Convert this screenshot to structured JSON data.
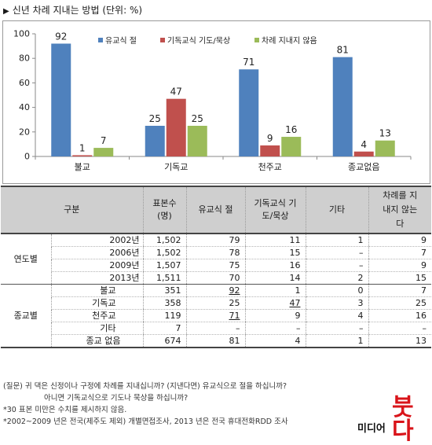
{
  "header": {
    "marker": "▶",
    "title": "신년 차례 지내는 방법 (단위: %)"
  },
  "chart_data": {
    "type": "bar",
    "title": "",
    "xlabel": "",
    "ylabel": "",
    "ylim": [
      0,
      100
    ],
    "yticks": [
      0,
      20,
      40,
      60,
      80,
      100
    ],
    "grid": false,
    "legend_position": "top-right",
    "categories": [
      "불교",
      "기독교",
      "천주교",
      "종교없음"
    ],
    "series": [
      {
        "name": "유교식 절",
        "color": "#4f81bd",
        "values": [
          92,
          25,
          71,
          81
        ]
      },
      {
        "name": "기독교식 기도/묵상",
        "color": "#c0504d",
        "values": [
          1,
          47,
          9,
          4
        ]
      },
      {
        "name": "차례 지내지 않음",
        "color": "#9bbb59",
        "values": [
          7,
          25,
          16,
          13
        ]
      }
    ]
  },
  "table": {
    "headers": [
      "구분",
      "표본수 (명)",
      "유교식 절",
      "기독교식 기도/묵상",
      "기타",
      "차례를 지내지 않는다"
    ],
    "groups": [
      {
        "label": "연도별",
        "rows": [
          {
            "label": "2002년",
            "n": "1,502",
            "confucian": "79",
            "christian": "11",
            "other": "1",
            "none": "9"
          },
          {
            "label": "2006년",
            "n": "1,502",
            "confucian": "78",
            "christian": "15",
            "other": "–",
            "none": "7"
          },
          {
            "label": "2009년",
            "n": "1,507",
            "confucian": "75",
            "christian": "16",
            "other": "–",
            "none": "9"
          },
          {
            "label": "2013년",
            "n": "1,511",
            "confucian": "70",
            "christian": "14",
            "other": "2",
            "none": "15"
          }
        ]
      },
      {
        "label": "종교별",
        "rows": [
          {
            "label": "불교",
            "n": "351",
            "confucian": "92",
            "christian": "1",
            "other": "0",
            "none": "7"
          },
          {
            "label": "기독교",
            "n": "358",
            "confucian": "25",
            "christian": "47",
            "other": "3",
            "none": "25"
          },
          {
            "label": "천주교",
            "n": "119",
            "confucian": "71",
            "christian": "9",
            "other": "4",
            "none": "16"
          },
          {
            "label": "기타",
            "n": "7",
            "confucian": "–",
            "christian": "–",
            "other": "–",
            "none": "–"
          },
          {
            "label": "종교 없음",
            "n": "674",
            "confucian": "81",
            "christian": "4",
            "other": "1",
            "none": "13"
          }
        ]
      }
    ]
  },
  "notes": {
    "q1": "(질문) 귀 댁은 신정이나 구정에 차례를 지내십니까? (지낸다면) 유교식으로 절을 하십니까?",
    "q2": "아니면 기독교식으로 기도나 묵상을 하십니까?",
    "n1": "*30 표본 미만은 수치를 제시하지 않음.",
    "n2": "*2002~2009 년은 전국(제주도 제외) 개별면접조사, 2013 년은 전국 휴대전화RDD 조사"
  },
  "logo": {
    "small": "미디어",
    "big": "붓다"
  }
}
